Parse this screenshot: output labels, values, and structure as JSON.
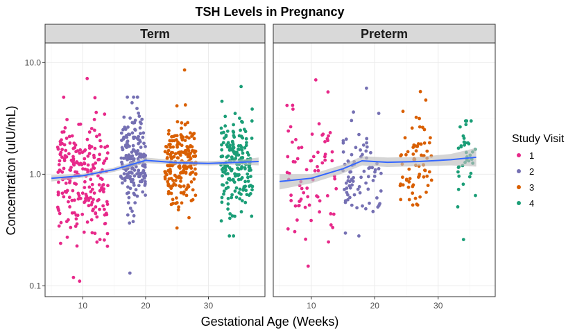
{
  "chart_data": {
    "type": "scatter",
    "title": "TSH Levels in Pregnancy",
    "xlabel": "Gestational Age (Weeks)",
    "ylabel": "Concentration (uIU/mL)",
    "y_scale": "log10",
    "ylim": [
      0.08,
      15
    ],
    "xlim": [
      4,
      39
    ],
    "x_ticks": [
      10,
      20,
      30
    ],
    "y_ticks": [
      0.1,
      1.0,
      10.0
    ],
    "y_tick_labels": [
      "0.1",
      "1.0",
      "10.0"
    ],
    "grid": true,
    "legend": {
      "title": "Study Visit",
      "position": "right",
      "entries": [
        {
          "label": "1",
          "color": "#e7298a"
        },
        {
          "label": "2",
          "color": "#7570b3"
        },
        {
          "label": "3",
          "color": "#d95f02"
        },
        {
          "label": "4",
          "color": "#1b9e77"
        }
      ]
    },
    "smooth_color": "#3366ff",
    "panels": [
      {
        "name": "Term",
        "visits": [
          {
            "visit": "1",
            "x_range": [
              6,
              14
            ],
            "n": 230,
            "median": 0.95,
            "sd_log10": 0.28,
            "y_min": 0.11,
            "y_max": 7.2
          },
          {
            "visit": "2",
            "x_range": [
              16,
              20
            ],
            "n": 190,
            "median": 1.35,
            "sd_log10": 0.22,
            "y_min": 0.13,
            "y_max": 4.9
          },
          {
            "visit": "3",
            "x_range": [
              23,
              28
            ],
            "n": 200,
            "median": 1.25,
            "sd_log10": 0.2,
            "y_min": 0.33,
            "y_max": 8.6
          },
          {
            "visit": "4",
            "x_range": [
              32,
              37
            ],
            "n": 190,
            "median": 1.25,
            "sd_log10": 0.22,
            "y_min": 0.28,
            "y_max": 6.1
          }
        ],
        "smooth": {
          "x": [
            5,
            10,
            15,
            20,
            25,
            30,
            35,
            38
          ],
          "y": [
            0.92,
            0.97,
            1.1,
            1.33,
            1.27,
            1.25,
            1.28,
            1.3
          ],
          "lower": [
            0.86,
            0.93,
            1.05,
            1.26,
            1.22,
            1.2,
            1.22,
            1.2
          ],
          "upper": [
            0.98,
            1.01,
            1.15,
            1.41,
            1.33,
            1.31,
            1.35,
            1.41
          ]
        }
      },
      {
        "name": "Preterm",
        "visits": [
          {
            "visit": "1",
            "x_range": [
              6,
              14
            ],
            "n": 75,
            "median": 0.95,
            "sd_log10": 0.3,
            "y_min": 0.15,
            "y_max": 7.0
          },
          {
            "visit": "2",
            "x_range": [
              15,
              21
            ],
            "n": 80,
            "median": 1.15,
            "sd_log10": 0.22,
            "y_min": 0.28,
            "y_max": 5.9
          },
          {
            "visit": "3",
            "x_range": [
              24,
              29
            ],
            "n": 70,
            "median": 1.25,
            "sd_log10": 0.2,
            "y_min": 0.53,
            "y_max": 5.5
          },
          {
            "visit": "4",
            "x_range": [
              33,
              36
            ],
            "n": 35,
            "median": 1.5,
            "sd_log10": 0.22,
            "y_min": 0.26,
            "y_max": 3.0
          }
        ],
        "smooth": {
          "x": [
            5,
            10,
            15,
            18,
            22,
            27,
            32,
            36
          ],
          "y": [
            0.86,
            0.92,
            1.12,
            1.32,
            1.28,
            1.3,
            1.35,
            1.42
          ],
          "lower": [
            0.73,
            0.83,
            1.02,
            1.2,
            1.16,
            1.18,
            1.2,
            1.17
          ],
          "upper": [
            1.0,
            1.0,
            1.22,
            1.45,
            1.41,
            1.43,
            1.52,
            1.72
          ]
        }
      }
    ]
  }
}
